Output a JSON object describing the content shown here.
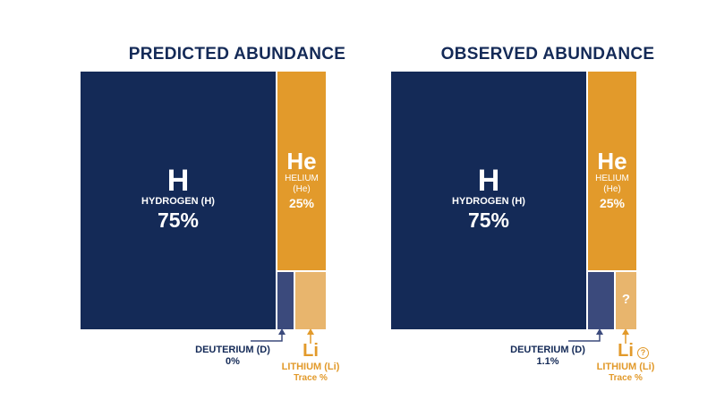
{
  "colors": {
    "hydrogen": "#142a57",
    "helium": "#e29a2b",
    "deuterium": "#3b4a7c",
    "lithium": "#e8b56d",
    "title": "#142a57",
    "helium_text": "#e29a2b"
  },
  "panels": [
    {
      "title": "PREDICTED ABUNDANCE",
      "hydrogen": {
        "symbol": "H",
        "name": "HYDROGEN (H)",
        "percent": "75%"
      },
      "helium": {
        "symbol": "He",
        "name_line1": "HELIUM",
        "name_line2": "(He)",
        "percent": "25%"
      },
      "deuterium": {
        "label": "DEUTERIUM (D)",
        "value": "0%"
      },
      "lithium": {
        "symbol": "Li",
        "name": "LITHIUM (Li)",
        "amount": "Trace %",
        "box_text": ""
      }
    },
    {
      "title": "OBSERVED ABUNDANCE",
      "hydrogen": {
        "symbol": "H",
        "name": "HYDROGEN (H)",
        "percent": "75%"
      },
      "helium": {
        "symbol": "He",
        "name_line1": "HELIUM",
        "name_line2": "(He)",
        "percent": "25%"
      },
      "deuterium": {
        "label": "DEUTERIUM (D)",
        "value": "1.1%"
      },
      "lithium": {
        "symbol": "Li",
        "name": "LITHIUM (Li)",
        "amount": "Trace %",
        "box_text": "?",
        "icon": "question-circle-icon"
      }
    }
  ]
}
